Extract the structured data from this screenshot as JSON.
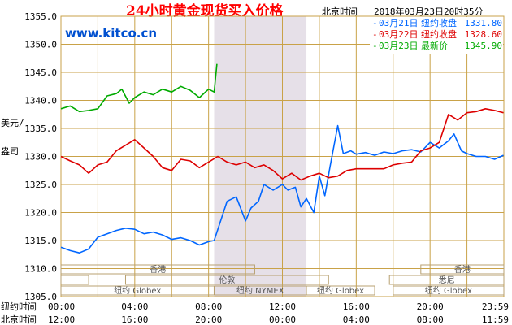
{
  "title": "24小时黄金现货买入价格",
  "clock_label": "北京时间",
  "timestamp": "2018年03月23日20时35分",
  "brand": "www.kitco.cn",
  "y_axis_title": [
    "美元/",
    "盎司"
  ],
  "colors": {
    "grid": "#c9a248",
    "nymex_band": "#e6e0e8",
    "series_0321": "#0066ff",
    "series_0322": "#dd0000",
    "series_0323": "#00aa00",
    "title": "#ff0000",
    "brand": "#0050d0"
  },
  "legend": [
    {
      "date": "03月21日",
      "label": "纽约收盘",
      "value": "1331.80",
      "color": "#0066ff"
    },
    {
      "date": "03月22日",
      "label": "纽约收盘",
      "value": "1328.60",
      "color": "#dd0000"
    },
    {
      "date": "03月23日",
      "label": "最新价",
      "value": "1345.90",
      "color": "#00aa00"
    }
  ],
  "x_axis_ny": {
    "label": "纽约时间",
    "ticks": [
      "00:00",
      "04:00",
      "08:00",
      "12:00",
      "16:00",
      "20:00",
      "23:59"
    ]
  },
  "x_axis_bj": {
    "label": "北京时间",
    "ticks": [
      "12:00",
      "16:00",
      "20:00",
      "00:00",
      "04:00",
      "08:00",
      "11:59"
    ]
  },
  "sessions": {
    "hongkong": "香港",
    "london": "伦敦",
    "ny_globex": "纽约 Globex",
    "ny_nymex": "纽约 NYMEX",
    "sydney": "悉尼"
  },
  "chart_data": {
    "type": "line",
    "title": "24小时黄金现货买入价格",
    "xlabel": "纽约时间 / 北京时间",
    "ylabel": "美元/盎司",
    "xlim": [
      0,
      24
    ],
    "ylim": [
      1305,
      1355
    ],
    "y_ticks": [
      "1305.0",
      "1310.0",
      "1315.0",
      "1320.0",
      "1325.0",
      "1330.0",
      "1335.0",
      "1340.0",
      "1345.0",
      "1350.0",
      "1355.0"
    ],
    "grid": true,
    "shaded_range_hours": [
      8.3,
      13.3
    ],
    "series": [
      {
        "name": "03月21日",
        "color": "#0066ff",
        "x": [
          0,
          0.5,
          1,
          1.5,
          2,
          2.5,
          3,
          3.5,
          4,
          4.5,
          5,
          5.5,
          6,
          6.5,
          7,
          7.5,
          8,
          8.3,
          8.7,
          9,
          9.5,
          10,
          10.3,
          10.7,
          11,
          11.5,
          12,
          12.3,
          12.7,
          13,
          13.3,
          13.7,
          14,
          14.3,
          14.6,
          15,
          15.3,
          15.7,
          16,
          16.5,
          17,
          17.5,
          18,
          18.5,
          19,
          19.5,
          20,
          20.5,
          21,
          21.3,
          21.7,
          22,
          22.5,
          23,
          23.5,
          23.98
        ],
        "y": [
          1313.8,
          1313.2,
          1312.8,
          1313.5,
          1315.6,
          1316.2,
          1316.8,
          1317.2,
          1317.0,
          1316.2,
          1316.5,
          1316.0,
          1315.2,
          1315.5,
          1315.0,
          1314.2,
          1314.8,
          1315.0,
          1319.0,
          1322.0,
          1322.8,
          1318.5,
          1320.8,
          1322.0,
          1325.0,
          1324.0,
          1325.0,
          1324.0,
          1324.5,
          1321.0,
          1322.5,
          1320.0,
          1326.5,
          1323.0,
          1328.5,
          1335.5,
          1330.5,
          1331.0,
          1330.4,
          1330.7,
          1330.2,
          1330.8,
          1330.5,
          1331.0,
          1331.2,
          1330.8,
          1332.5,
          1331.5,
          1332.8,
          1334.0,
          1331.0,
          1330.5,
          1330.0,
          1330.0,
          1329.5,
          1330.2
        ]
      },
      {
        "name": "03月22日",
        "color": "#dd0000",
        "x": [
          0,
          0.5,
          1,
          1.5,
          2,
          2.5,
          3,
          3.5,
          4,
          4.5,
          5,
          5.5,
          6,
          6.5,
          7,
          7.5,
          8,
          8.5,
          9,
          9.5,
          10,
          10.5,
          11,
          11.5,
          12,
          12.5,
          13,
          13.5,
          14,
          14.5,
          15,
          15.5,
          16,
          16.5,
          17,
          17.5,
          18,
          18.5,
          19,
          19.5,
          20,
          20.5,
          21,
          21.5,
          22,
          22.5,
          23,
          23.5,
          23.98
        ],
        "y": [
          1330.0,
          1329.2,
          1328.5,
          1327.0,
          1328.5,
          1329.0,
          1331.0,
          1332.0,
          1333.0,
          1331.5,
          1330.0,
          1328.0,
          1327.5,
          1329.5,
          1329.2,
          1328.0,
          1329.0,
          1330.0,
          1329.0,
          1328.5,
          1329.0,
          1328.0,
          1328.5,
          1327.5,
          1326.0,
          1327.0,
          1325.8,
          1326.5,
          1327.0,
          1326.2,
          1326.5,
          1327.5,
          1327.8,
          1327.8,
          1327.8,
          1327.8,
          1328.5,
          1328.8,
          1329.0,
          1331.0,
          1331.5,
          1332.5,
          1337.5,
          1336.5,
          1337.8,
          1338.0,
          1338.5,
          1338.2,
          1337.8
        ]
      },
      {
        "name": "03月23日",
        "color": "#00aa00",
        "x": [
          0,
          0.5,
          1,
          1.5,
          2,
          2.5,
          3,
          3.3,
          3.7,
          4,
          4.5,
          5,
          5.5,
          6,
          6.5,
          7,
          7.5,
          8,
          8.3,
          8.45
        ],
        "y": [
          1338.5,
          1339.0,
          1338.0,
          1338.2,
          1338.5,
          1340.8,
          1341.2,
          1342.0,
          1339.5,
          1340.5,
          1341.5,
          1341.0,
          1342.0,
          1341.5,
          1342.5,
          1341.8,
          1340.5,
          1342.0,
          1341.5,
          1346.5
        ]
      }
    ]
  }
}
